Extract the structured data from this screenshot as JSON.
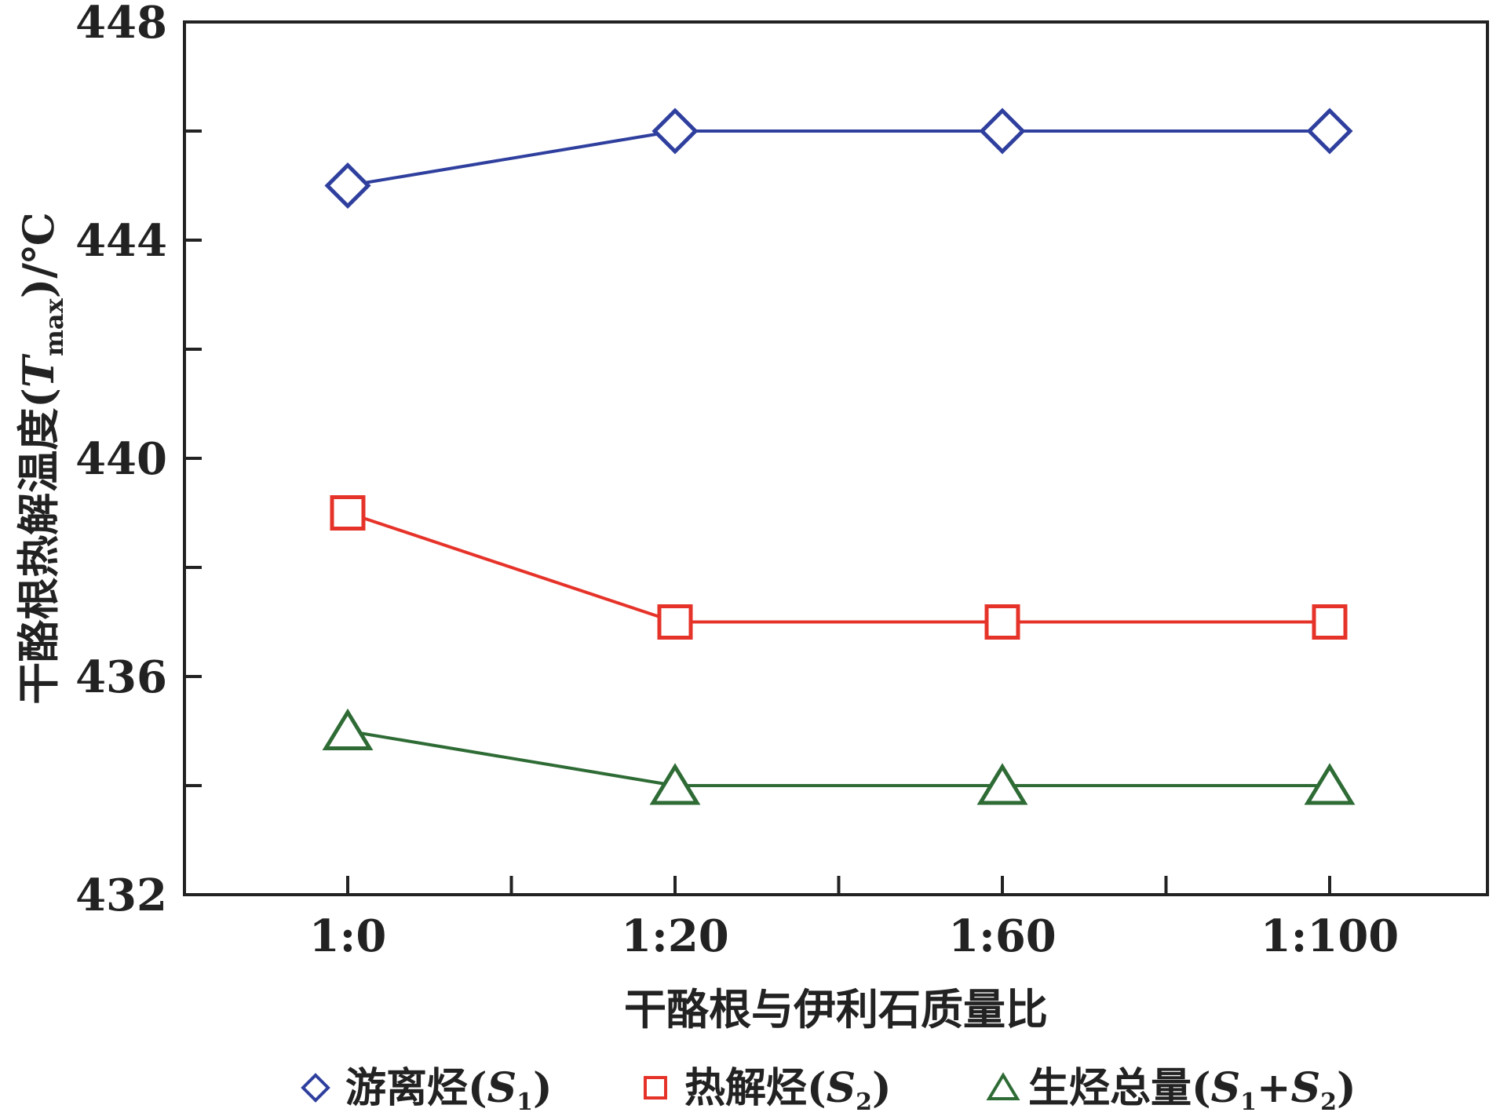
{
  "chart_data": {
    "type": "line",
    "categories": [
      "1:0",
      "1:20",
      "1:60",
      "1:100"
    ],
    "xlabel": "干酪根与伊利石质量比",
    "ylabel": {
      "main": "干酪根热解温度(",
      "var": "T",
      "sub": "max",
      "tail": ")/℃"
    },
    "ylim": [
      432,
      448
    ],
    "yticks_labeled": [
      432,
      436,
      440,
      444,
      448
    ],
    "yticks_minor": [
      434,
      438,
      442,
      446
    ],
    "grid": false,
    "legend_position": "bottom",
    "series": [
      {
        "name": "游离烃(S1)",
        "label_main": "游离烃(",
        "label_var": "S",
        "label_sub": "1",
        "label_tail": ")",
        "marker": "diamond",
        "color": "#2f3f9e",
        "values": [
          445,
          446,
          446,
          446
        ]
      },
      {
        "name": "热解烃(S2)",
        "label_main": "热解烃(",
        "label_var": "S",
        "label_sub": "2",
        "label_tail": ")",
        "marker": "square",
        "color": "#e63329",
        "values": [
          439,
          437,
          437,
          437
        ]
      },
      {
        "name": "生烃总量(S1+S2)",
        "label_main": "生烃总量(",
        "label_var": "S",
        "label_sub": "1",
        "label_mid": "+S",
        "label_sub2": "2",
        "label_tail": ")",
        "marker": "triangle",
        "color": "#2e6b35",
        "values": [
          435,
          434,
          434,
          434
        ]
      }
    ]
  }
}
